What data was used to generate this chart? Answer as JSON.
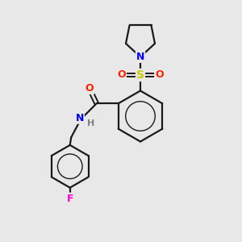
{
  "bg_color": "#e8e8e8",
  "bond_color": "#1a1a1a",
  "atom_colors": {
    "N": "#0000ff",
    "O": "#ff2200",
    "S": "#cccc00",
    "F": "#ff00cc",
    "H": "#808080"
  },
  "figsize": [
    3.0,
    3.0
  ],
  "dpi": 100
}
